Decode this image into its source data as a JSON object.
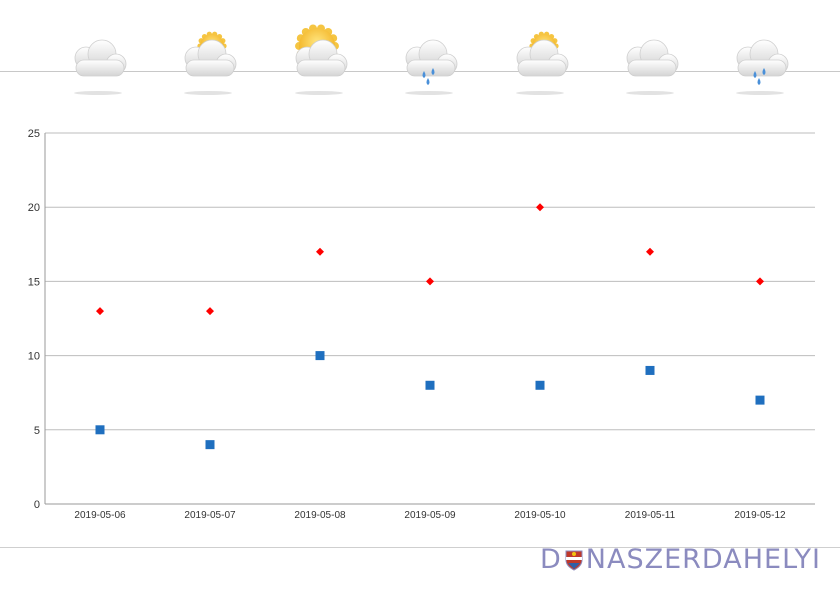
{
  "weather": [
    {
      "date": "2019-05-06",
      "icon": "cloudy-icon"
    },
    {
      "date": "2019-05-07",
      "icon": "partly-sunny-icon"
    },
    {
      "date": "2019-05-08",
      "icon": "mostly-sunny-icon"
    },
    {
      "date": "2019-05-09",
      "icon": "rain-cloud-icon"
    },
    {
      "date": "2019-05-10",
      "icon": "partly-sunny-icon"
    },
    {
      "date": "2019-05-11",
      "icon": "cloudy-icon"
    },
    {
      "date": "2019-05-12",
      "icon": "rain-cloud-icon"
    }
  ],
  "chart_data": {
    "type": "scatter",
    "categories": [
      "2019-05-06",
      "2019-05-07",
      "2019-05-08",
      "2019-05-09",
      "2019-05-10",
      "2019-05-11",
      "2019-05-12"
    ],
    "series": [
      {
        "values": [
          13,
          13,
          17,
          15,
          20,
          17,
          15
        ],
        "color": "#ff0000",
        "marker": "diamond"
      },
      {
        "values": [
          5,
          4,
          10,
          8,
          8,
          9,
          7
        ],
        "color": "#1f6fbf",
        "marker": "square"
      }
    ],
    "ylim": [
      0,
      25
    ],
    "yticks": [
      0,
      5,
      10,
      15,
      20,
      25
    ],
    "grid": true,
    "title": "",
    "xlabel": "",
    "ylabel": ""
  },
  "brand": {
    "d": "D",
    "rest": "NASZERDAHELYI"
  },
  "colors": {
    "grid": "#bdbdbd",
    "axis": "#9a9a9a",
    "brand": "#8b8bbf"
  }
}
